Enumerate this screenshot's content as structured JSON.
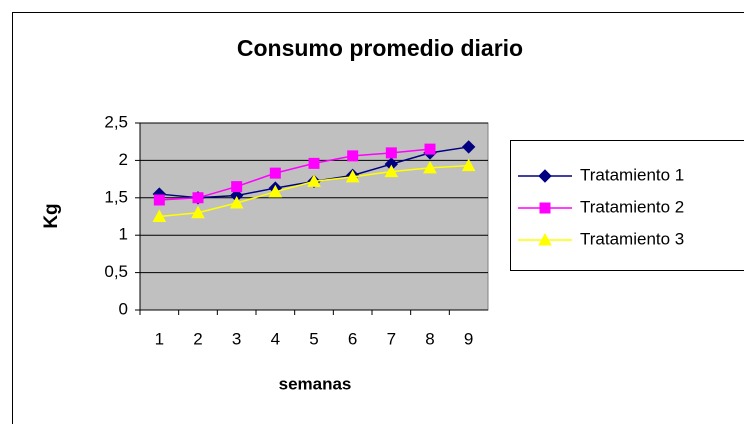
{
  "chart_data": {
    "type": "line",
    "title": "Consumo promedio diario",
    "xlabel": "semanas",
    "ylabel": "Kg",
    "categories": [
      "1",
      "2",
      "3",
      "4",
      "5",
      "6",
      "7",
      "8",
      "9"
    ],
    "series": [
      {
        "name": "Tratamiento 1",
        "color": "#000080",
        "marker": "diamond",
        "values": [
          1.55,
          1.5,
          1.53,
          1.63,
          1.72,
          1.8,
          1.95,
          2.1,
          2.18
        ]
      },
      {
        "name": "Tratamiento 2",
        "color": "#ff00ff",
        "marker": "square",
        "values": [
          1.47,
          1.5,
          1.65,
          1.83,
          1.96,
          2.06,
          2.1,
          2.15,
          null
        ]
      },
      {
        "name": "Tratamiento 3",
        "color": "#ffff00",
        "marker": "triangle",
        "values": [
          1.25,
          1.3,
          1.43,
          1.58,
          1.72,
          1.78,
          1.85,
          1.9,
          1.93
        ]
      }
    ],
    "ylim": [
      0,
      2.5
    ],
    "yticks": [
      0,
      {
        "value": 0.5,
        "label": "0,5"
      },
      1,
      {
        "value": 1.5,
        "label": "1,5"
      },
      2,
      {
        "value": 2.5,
        "label": "2,5"
      }
    ],
    "grid": true,
    "legend": "right",
    "plot_background": "#c0c0c0"
  }
}
